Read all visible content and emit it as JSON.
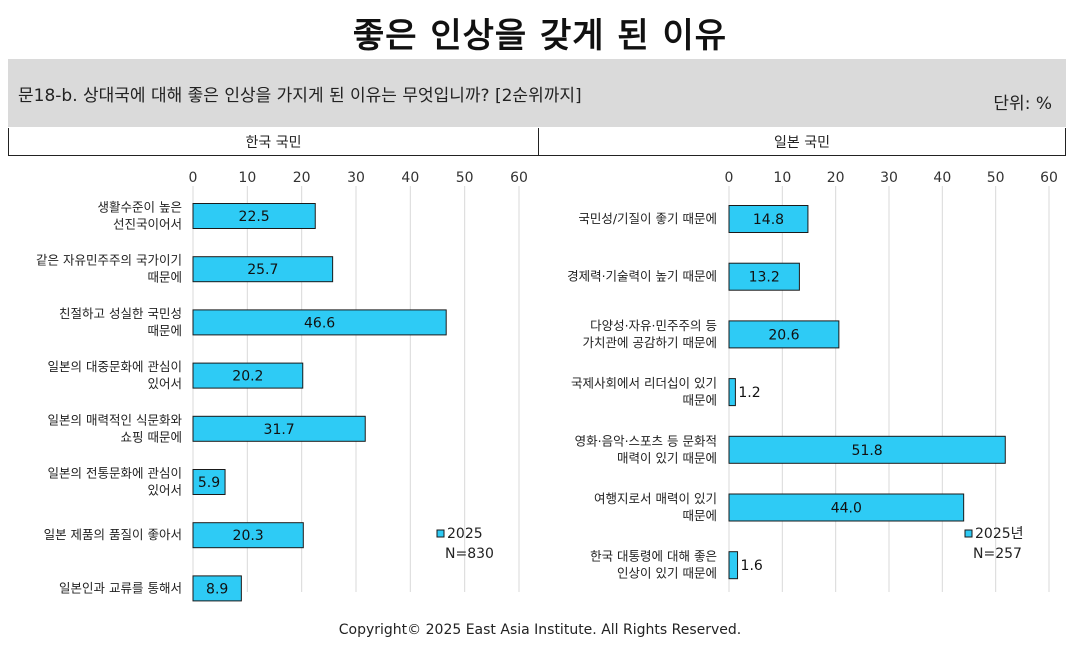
{
  "page": {
    "title": "좋은 인상을 갖게 된 이유",
    "question": "문18-b. 상대국에 대해 좋은 인상을 가지게 된 이유는 무엇입니까? [2순위까지]",
    "unit": "단위: %",
    "copyright": "Copyright© 2025 East Asia Institute. All Rights Reserved."
  },
  "colors": {
    "bar": "#2ecbf5",
    "bar_stroke": "#1a1a1a",
    "grid": "#d9d9d9"
  },
  "chart_data": [
    {
      "type": "bar",
      "orientation": "horizontal",
      "panel_label": "한국 국민",
      "xlim": [
        0,
        60
      ],
      "ticks": [
        "0",
        "10",
        "20",
        "30",
        "40",
        "50",
        "60"
      ],
      "legend": {
        "label": "2025",
        "n": "N=830"
      },
      "categories": [
        [
          "생활수준이 높은",
          "선진국이어서"
        ],
        [
          "같은 자유민주주의 국가이기",
          "때문에"
        ],
        [
          "친절하고 성실한 국민성",
          "때문에"
        ],
        [
          "일본의 대중문화에 관심이",
          "있어서"
        ],
        [
          "일본의 매력적인 식문화와",
          "쇼핑 때문에"
        ],
        [
          "일본의 전통문화에 관심이",
          "있어서"
        ],
        [
          "일본 제품의 품질이 좋아서"
        ],
        [
          "일본인과 교류를 통해서"
        ]
      ],
      "values": [
        22.5,
        25.7,
        46.6,
        20.2,
        31.7,
        5.9,
        20.3,
        8.9
      ],
      "value_labels": [
        "22.5",
        "25.7",
        "46.6",
        "20.2",
        "31.7",
        "5.9",
        "20.3",
        "8.9"
      ]
    },
    {
      "type": "bar",
      "orientation": "horizontal",
      "panel_label": "일본 국민",
      "xlim": [
        0,
        60
      ],
      "ticks": [
        "0",
        "10",
        "20",
        "30",
        "40",
        "50",
        "60"
      ],
      "legend": {
        "label": "2025년",
        "n": "N=257"
      },
      "categories": [
        [
          "국민성/기질이 좋기 때문에"
        ],
        [
          "경제력·기술력이 높기 때문에"
        ],
        [
          "다양성·자유·민주주의 등",
          "가치관에 공감하기 때문에"
        ],
        [
          "국제사회에서 리더십이 있기",
          "때문에"
        ],
        [
          "영화·음악·스포츠 등 문화적",
          "매력이 있기 때문에"
        ],
        [
          "여행지로서 매력이 있기",
          "때문에"
        ],
        [
          "한국 대통령에 대해 좋은",
          "인상이 있기 때문에"
        ]
      ],
      "values": [
        14.8,
        13.2,
        20.6,
        1.2,
        51.8,
        44.0,
        1.6
      ],
      "value_labels": [
        "14.8",
        "13.2",
        "20.6",
        "1.2",
        "51.8",
        "44.0",
        "1.6"
      ]
    }
  ]
}
